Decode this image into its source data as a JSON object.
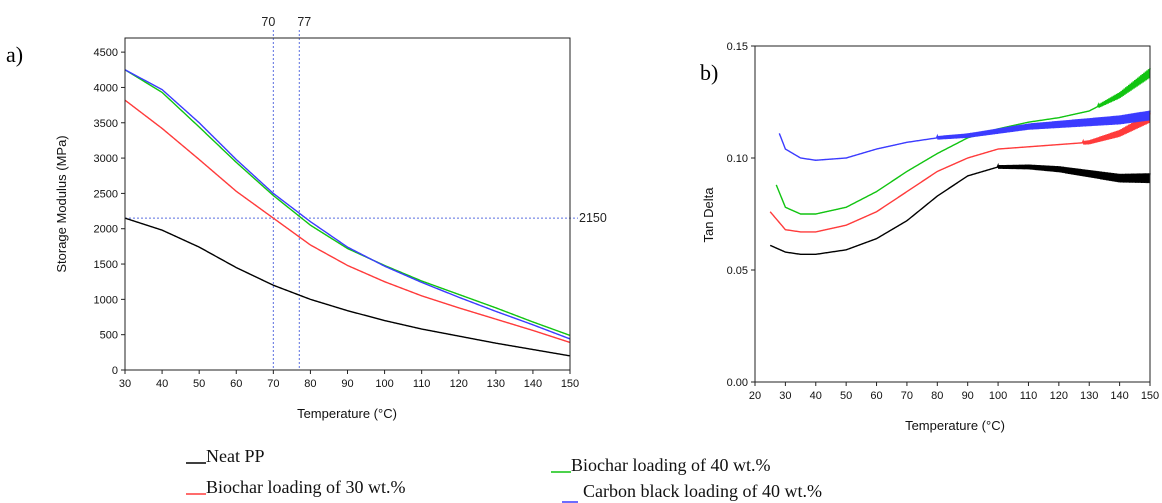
{
  "chart_data": [
    {
      "panel": "a)",
      "type": "line",
      "xlabel": "Temperature (°C)",
      "ylabel": "Storage Modulus (MPa)",
      "xlim": [
        30,
        150
      ],
      "ylim": [
        0,
        4700
      ],
      "xticks": [
        30,
        40,
        50,
        60,
        70,
        80,
        90,
        100,
        110,
        120,
        130,
        140,
        150
      ],
      "yticks": [
        0,
        500,
        1000,
        1500,
        2000,
        2500,
        3000,
        3500,
        4000,
        4500
      ],
      "reference_lines": {
        "vertical": [
          70,
          77
        ],
        "vertical_labels": [
          "70",
          "77"
        ],
        "horizontal": 2150,
        "horizontal_label": "2150",
        "color": "#5a6fe0"
      },
      "series": [
        {
          "name": "Neat PP",
          "color": "#000000",
          "x": [
            30,
            40,
            50,
            60,
            70,
            80,
            90,
            100,
            110,
            120,
            130,
            140,
            150
          ],
          "y": [
            2150,
            1980,
            1740,
            1450,
            1200,
            1000,
            840,
            700,
            580,
            480,
            380,
            290,
            200
          ]
        },
        {
          "name": "Biochar loading of 30 wt.%",
          "color": "#ff3b3b",
          "x": [
            30,
            40,
            50,
            60,
            70,
            80,
            90,
            100,
            110,
            120,
            130,
            140,
            150
          ],
          "y": [
            3820,
            3420,
            2980,
            2530,
            2150,
            1770,
            1480,
            1250,
            1050,
            880,
            720,
            560,
            390
          ]
        },
        {
          "name": "Biochar loading of 40 wt.%",
          "color": "#11c411",
          "x": [
            30,
            40,
            50,
            60,
            70,
            80,
            90,
            100,
            110,
            120,
            130,
            140,
            150
          ],
          "y": [
            4250,
            3930,
            3440,
            2940,
            2470,
            2050,
            1720,
            1480,
            1260,
            1070,
            880,
            680,
            490
          ]
        },
        {
          "name": "Carbon black loading of 40 wt.%",
          "color": "#3b3bff",
          "x": [
            30,
            40,
            50,
            60,
            70,
            80,
            90,
            100,
            110,
            120,
            130,
            140,
            150
          ],
          "y": [
            4250,
            3970,
            3500,
            2980,
            2500,
            2100,
            1740,
            1470,
            1240,
            1030,
            830,
            640,
            440
          ]
        }
      ]
    },
    {
      "panel": "b)",
      "type": "line",
      "xlabel": "Temperature (°C)",
      "ylabel": "Tan Delta",
      "xlim": [
        20,
        150
      ],
      "ylim": [
        0.0,
        0.15
      ],
      "xticks": [
        20,
        30,
        40,
        50,
        60,
        70,
        80,
        90,
        100,
        110,
        120,
        130,
        140,
        150
      ],
      "yticks": [
        0.0,
        0.05,
        0.1,
        0.15
      ],
      "ytick_labels": [
        "0.00",
        "0.05",
        "0.10",
        "0.15"
      ],
      "series": [
        {
          "name": "Neat PP",
          "color": "#000000",
          "x": [
            25,
            30,
            35,
            40,
            50,
            60,
            70,
            80,
            90,
            100,
            110,
            120,
            130,
            140,
            150
          ],
          "y": [
            0.061,
            0.058,
            0.057,
            0.057,
            0.059,
            0.064,
            0.072,
            0.083,
            0.092,
            0.096,
            0.096,
            0.095,
            0.093,
            0.091,
            0.091
          ],
          "noisy_from": 100
        },
        {
          "name": "Biochar loading of 30 wt.%",
          "color": "#ff3b3b",
          "x": [
            25,
            30,
            35,
            40,
            50,
            60,
            70,
            80,
            90,
            100,
            110,
            120,
            130,
            140,
            150
          ],
          "y": [
            0.076,
            0.068,
            0.067,
            0.067,
            0.07,
            0.076,
            0.085,
            0.094,
            0.1,
            0.104,
            0.105,
            0.106,
            0.107,
            0.111,
            0.118
          ],
          "noisy_from": 128
        },
        {
          "name": "Biochar loading of 40 wt.%",
          "color": "#11c411",
          "x": [
            27,
            30,
            35,
            40,
            50,
            60,
            70,
            80,
            90,
            100,
            110,
            120,
            130,
            140,
            150
          ],
          "y": [
            0.088,
            0.078,
            0.075,
            0.075,
            0.078,
            0.085,
            0.094,
            0.102,
            0.109,
            0.113,
            0.116,
            0.118,
            0.121,
            0.128,
            0.138
          ],
          "noisy_from": 133
        },
        {
          "name": "Carbon black loading of 40 wt.%",
          "color": "#3b3bff",
          "x": [
            28,
            30,
            35,
            40,
            50,
            60,
            70,
            80,
            90,
            100,
            110,
            120,
            130,
            140,
            150
          ],
          "y": [
            0.111,
            0.104,
            0.1,
            0.099,
            0.1,
            0.104,
            0.107,
            0.109,
            0.11,
            0.112,
            0.114,
            0.115,
            0.116,
            0.117,
            0.119
          ],
          "noisy_from": 80
        }
      ]
    }
  ],
  "legend": {
    "placement": "bottom",
    "items": [
      {
        "label": "Neat PP",
        "color": "#000000"
      },
      {
        "label": "Biochar loading of 30 wt.%",
        "color": "#ff3b3b"
      },
      {
        "label": "Biochar loading of 40 wt.%",
        "color": "#11c411"
      },
      {
        "label": "Carbon black loading of 40 wt.%",
        "color": "#3b3bff"
      }
    ]
  }
}
